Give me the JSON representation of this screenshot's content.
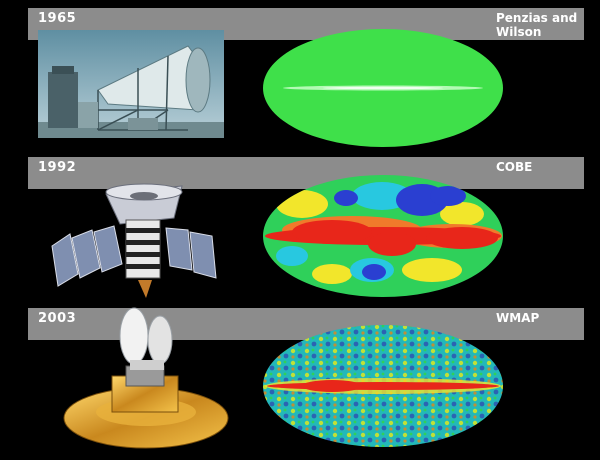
{
  "rows": [
    {
      "year": "1965",
      "mission": "Penzias and Wilson",
      "photo_icon": "horn-antenna-icon",
      "map_icon": "uniform-cmb-map-icon"
    },
    {
      "year": "1992",
      "mission": "COBE",
      "photo_icon": "cobe-satellite-icon",
      "map_icon": "cobe-cmb-map-icon"
    },
    {
      "year": "2003",
      "mission": "WMAP",
      "photo_icon": "wmap-satellite-icon",
      "map_icon": "wmap-cmb-map-icon"
    }
  ],
  "colors": {
    "background": "#000000",
    "band": "#8c8c8c",
    "text": "#ffffff",
    "map_green": "#3fe04a",
    "map_red": "#e8261a",
    "map_blue": "#2a3fd1"
  }
}
